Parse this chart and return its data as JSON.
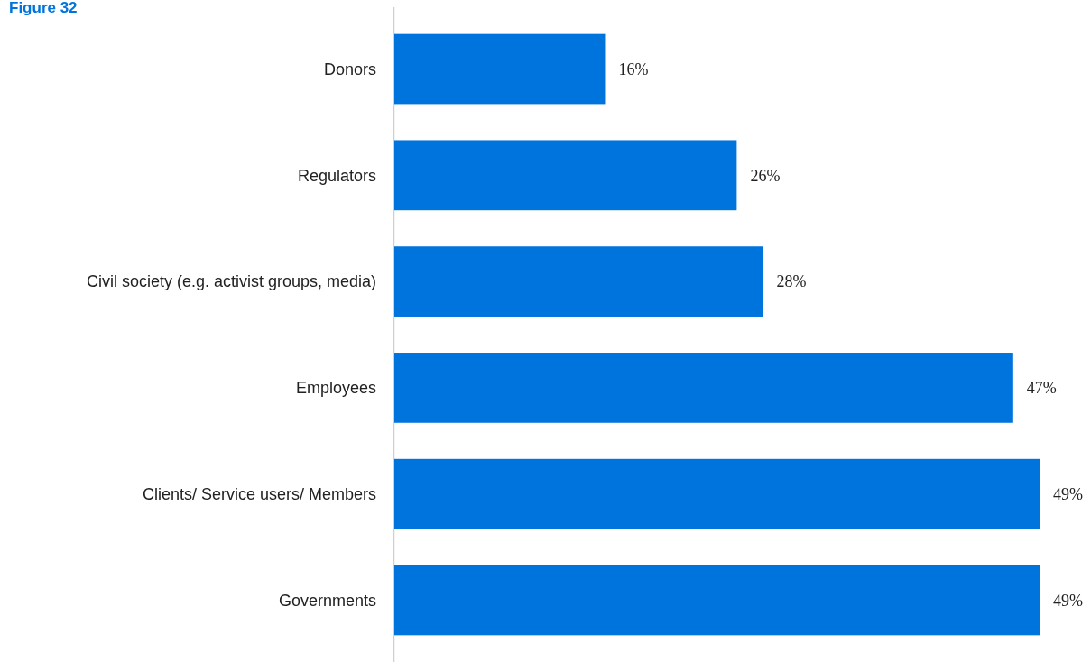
{
  "chart_data": {
    "type": "bar",
    "orientation": "horizontal",
    "title": "Figure 32",
    "categories": [
      "Donors",
      "Regulators",
      "Civil society (e.g. activist groups, media)",
      "Employees",
      "Clients/ Service users/ Members",
      "Governments"
    ],
    "values": [
      16,
      26,
      28,
      47,
      49,
      49
    ],
    "color": "#0074dd",
    "data_labels": true,
    "value_labels": [
      "16%",
      "26%",
      "28%",
      "47%",
      "49%",
      "49%"
    ]
  }
}
